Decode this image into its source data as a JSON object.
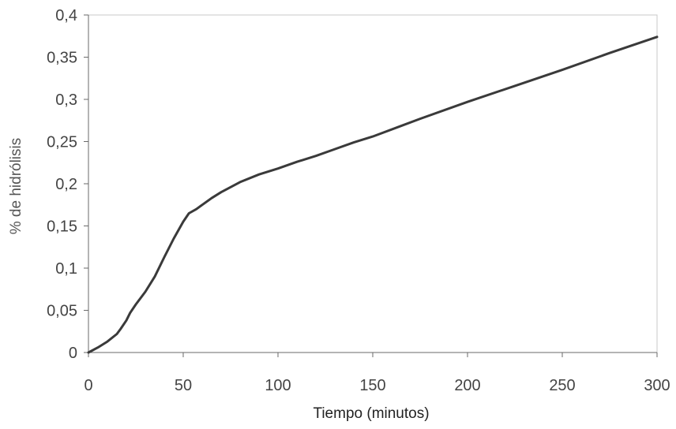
{
  "chart_data": {
    "type": "line",
    "title": "",
    "xlabel": "Tiempo (minutos)",
    "ylabel": "% de hidrólisis",
    "xlim": [
      0,
      300
    ],
    "ylim": [
      0,
      0.4
    ],
    "x_ticks": [
      0,
      50,
      100,
      150,
      200,
      250,
      300
    ],
    "x_tick_labels": [
      "0",
      "50",
      "100",
      "150",
      "200",
      "250",
      "300"
    ],
    "y_ticks": [
      0,
      0.05,
      0.1,
      0.15,
      0.2,
      0.25,
      0.3,
      0.35,
      0.4
    ],
    "y_tick_labels": [
      "0",
      "0,05",
      "0,1",
      "0,15",
      "0,2",
      "0,25",
      "0,3",
      "0,35",
      "0,4"
    ],
    "grid": false,
    "legend": "none",
    "series": [
      {
        "color": "#3a3a3a",
        "x": [
          0,
          5,
          10,
          15,
          17,
          20,
          22,
          25,
          30,
          35,
          40,
          45,
          50,
          53,
          57,
          60,
          65,
          70,
          80,
          90,
          100,
          110,
          120,
          130,
          140,
          150,
          175,
          200,
          225,
          250,
          275,
          300
        ],
        "y": [
          0,
          0.006,
          0.013,
          0.022,
          0.028,
          0.038,
          0.047,
          0.057,
          0.072,
          0.09,
          0.113,
          0.135,
          0.155,
          0.165,
          0.17,
          0.175,
          0.183,
          0.19,
          0.202,
          0.211,
          0.218,
          0.226,
          0.233,
          0.241,
          0.249,
          0.256,
          0.277,
          0.297,
          0.316,
          0.335,
          0.355,
          0.374
        ]
      }
    ]
  }
}
